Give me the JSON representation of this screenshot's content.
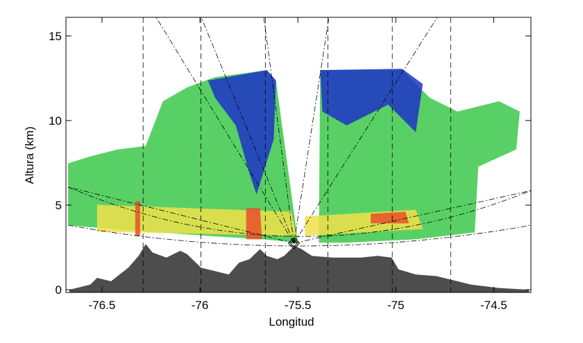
{
  "chart_data": {
    "type": "rhi",
    "xlabel": "Longitud",
    "ylabel": "Altura (km)",
    "xlim": [
      -76.684,
      -74.31
    ],
    "ylim": [
      -0.16,
      16.1
    ],
    "xticks": [
      -76.5,
      -76.0,
      -75.5,
      -75.0,
      -74.5
    ],
    "yticks": [
      0,
      5,
      10,
      15
    ],
    "radar": {
      "x": -75.52,
      "y": 2.75
    },
    "vlines": [
      -76.29,
      -75.995,
      -75.666,
      -75.347,
      -75.018,
      -74.72
    ],
    "terrain": {
      "color": "#4d4d4d",
      "x": [
        -76.666,
        -76.56,
        -76.525,
        -76.454,
        -76.366,
        -76.313,
        -76.277,
        -76.242,
        -76.171,
        -76.1,
        -76.065,
        -75.994,
        -75.923,
        -75.853,
        -75.8,
        -75.747,
        -75.693,
        -75.658,
        -75.605,
        -75.57,
        -75.517,
        -75.481,
        -75.428,
        -75.322,
        -75.181,
        -75.092,
        -75.021,
        -74.986,
        -74.898,
        -74.791,
        -74.685,
        -74.615,
        -74.473,
        -74.32
      ],
      "y": [
        0,
        0.3,
        0.7,
        0.5,
        1.3,
        2.0,
        2.7,
        2.2,
        1.9,
        2.3,
        2.1,
        1.3,
        1.1,
        0.9,
        1.6,
        1.8,
        2.4,
        2.0,
        1.8,
        2.0,
        2.6,
        2.4,
        2.0,
        1.9,
        1.9,
        2.0,
        1.9,
        1.2,
        0.9,
        0.8,
        0.5,
        0.3,
        0.1,
        0
      ]
    },
    "echo": [
      {
        "color": "#3cc84a",
        "x": [
          -76.673,
          -76.673,
          -76.56,
          -76.419,
          -76.277,
          -76.189,
          -76.065,
          -75.923,
          -75.782,
          -75.658,
          -75.612,
          -75.499,
          -75.676,
          -75.959,
          -76.313
        ],
        "y": [
          3.8,
          7.47,
          7.88,
          8.29,
          8.49,
          11.14,
          11.96,
          12.57,
          12.78,
          12.98,
          12.37,
          2.78,
          2.98,
          3.18,
          3.47
        ]
      },
      {
        "color": "#3cc84a",
        "x": [
          -75.393,
          -75.386,
          -75.181,
          -74.968,
          -74.827,
          -74.685,
          -74.473,
          -74.367,
          -74.385,
          -74.579,
          -74.597,
          -74.898,
          -75.251
        ],
        "y": [
          2.78,
          12.98,
          12.98,
          12.98,
          11.35,
          10.53,
          11.14,
          10.53,
          8.29,
          7.27,
          3.39,
          2.98,
          2.78
        ]
      },
      {
        "color": "#1e32c8",
        "x": [
          -75.959,
          -75.817,
          -75.658,
          -75.612,
          -75.623,
          -75.711,
          -75.747,
          -75.817,
          -75.923
        ],
        "y": [
          12.37,
          12.65,
          12.98,
          12.37,
          8.9,
          5.63,
          6.86,
          9.71,
          11.35
        ]
      },
      {
        "color": "#1e32c8",
        "x": [
          -75.386,
          -74.968,
          -74.862,
          -74.898,
          -75.039,
          -75.251,
          -75.375
        ],
        "y": [
          12.98,
          13.06,
          12.16,
          9.31,
          10.94,
          9.71,
          10.53
        ]
      },
      {
        "color": "#eee04a",
        "x": [
          -76.525,
          -75.534,
          -75.506,
          -76.525
        ],
        "y": [
          5.02,
          4.61,
          3.18,
          3.43
        ]
      },
      {
        "color": "#eee04a",
        "x": [
          -75.464,
          -74.898,
          -74.862,
          -75.464
        ],
        "y": [
          4.33,
          4.73,
          3.59,
          3.18
        ]
      },
      {
        "color": "#e8502a",
        "x": [
          -75.764,
          -75.693,
          -75.683,
          -75.764
        ],
        "y": [
          4.82,
          4.82,
          2.98,
          2.98
        ]
      },
      {
        "color": "#e8502a",
        "x": [
          -76.33,
          -76.305,
          -76.305,
          -76.33
        ],
        "y": [
          5.22,
          5.22,
          3.18,
          3.18
        ]
      },
      {
        "color": "#e8502a",
        "x": [
          -75.128,
          -74.951,
          -74.933,
          -75.128
        ],
        "y": [
          4.49,
          4.61,
          3.92,
          3.92
        ]
      }
    ]
  }
}
